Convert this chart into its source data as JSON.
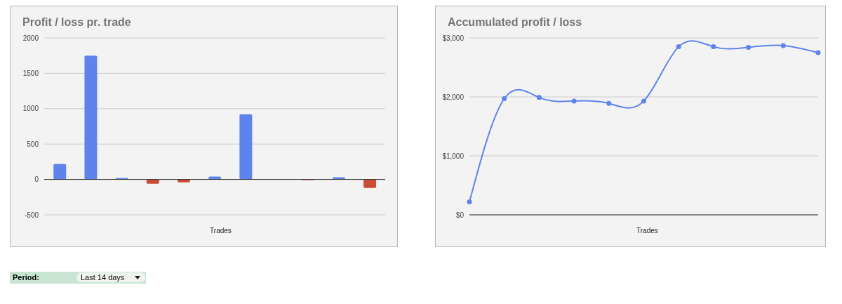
{
  "chart_data": [
    {
      "type": "bar",
      "title": "Profit / loss pr. trade",
      "xlabel": "Trades",
      "categories": [
        null,
        null,
        null,
        null,
        null,
        null,
        null,
        null,
        null,
        null,
        null
      ],
      "values": [
        220,
        1750,
        20,
        -60,
        -40,
        40,
        920,
        0,
        -10,
        30,
        -120
      ],
      "colors": [
        "#5f83ec",
        "#5f83ec",
        "#5f83ec",
        "#cc4b33",
        "#cc4b33",
        "#5f83ec",
        "#5f83ec",
        "#5f83ec",
        "#cc4b33",
        "#5f83ec",
        "#cc4b33"
      ],
      "ylim": [
        -500,
        2000
      ],
      "yticks": [
        -500,
        0,
        500,
        1000,
        1500,
        2000
      ],
      "grid": "y",
      "tick_labels": "y"
    },
    {
      "type": "line",
      "title": "Accumulated profit / loss",
      "xlabel": "Trades",
      "categories": [
        null,
        null,
        null,
        null,
        null,
        null,
        null,
        null,
        null,
        null,
        null
      ],
      "series": [
        {
          "color": "#5f83ec",
          "values": [
            220,
            1970,
            1990,
            1930,
            1890,
            1930,
            2850,
            2850,
            2840,
            2870,
            2750
          ]
        }
      ],
      "ylim": [
        0,
        3000
      ],
      "yticks": [
        {
          "value": 0,
          "label": "$0"
        },
        {
          "value": 1000,
          "label": "$1,000"
        },
        {
          "value": 2000,
          "label": "$2,000"
        },
        {
          "value": 3000,
          "label": "$3,000"
        }
      ],
      "grid": "y",
      "tick_labels": "y",
      "marker": "circle",
      "line_style": "solid"
    },
    {
      "type": "other",
      "annotations": [
        "Period:",
        "Last 14 days"
      ]
    }
  ]
}
